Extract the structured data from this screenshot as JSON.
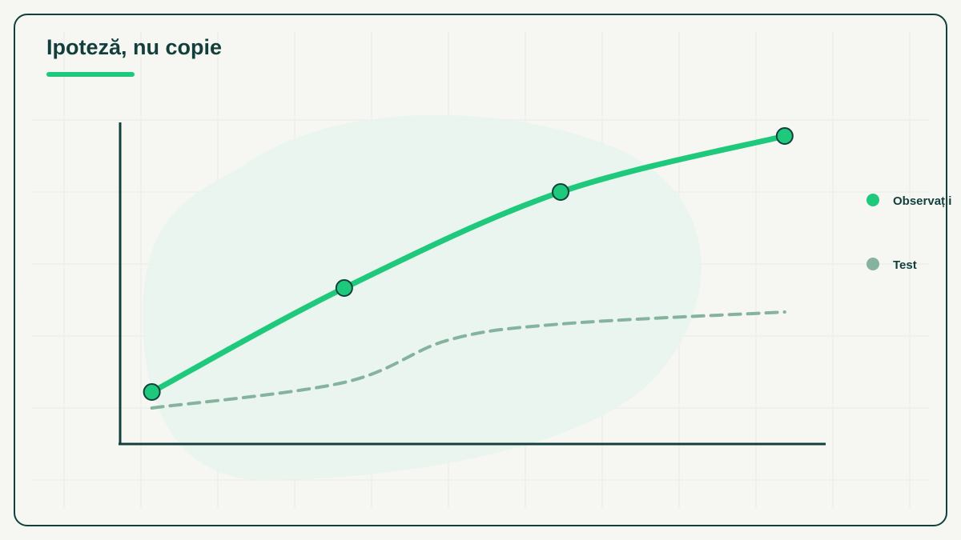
{
  "chart_data": {
    "type": "line",
    "title": "Ipoteză, nu copie",
    "xlim": [
      0,
      100
    ],
    "ylim": [
      0,
      100
    ],
    "series": [
      {
        "name": "Observații",
        "color": "#1fc97c",
        "x": [
          4.5,
          31.8,
          62.5,
          94.3
        ],
        "values": [
          16.25,
          48.75,
          78.75,
          96.25
        ]
      },
      {
        "name": "Test",
        "color": "#86b39d",
        "x": [
          4.5,
          31.8,
          46.6,
          62.5,
          94.3
        ],
        "values": [
          11.25,
          19.25,
          32.5,
          37.5,
          41.25
        ]
      }
    ]
  }
}
